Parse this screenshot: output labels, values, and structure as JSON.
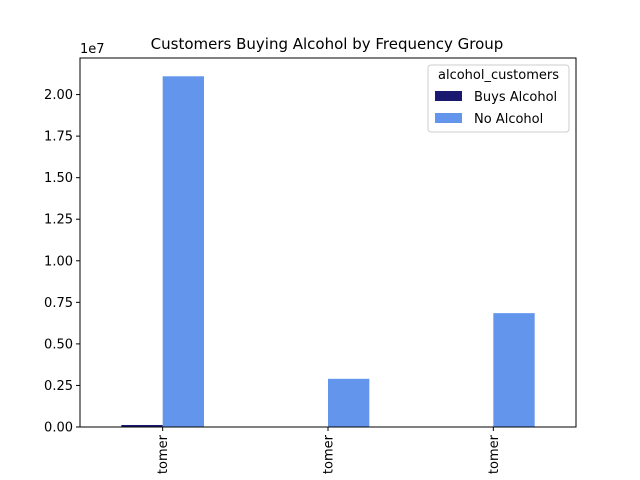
{
  "chart_data": {
    "type": "bar",
    "title": "Customers Buying Alcohol by Frequency Group",
    "xlabel": "",
    "ylabel": "",
    "categories": [
      "tomer",
      "tomer",
      "tomer"
    ],
    "y_offset_label": "1e7",
    "y_ticks": [
      0,
      0.25,
      0.5,
      0.75,
      1.0,
      1.25,
      1.5,
      1.75,
      2.0
    ],
    "y_tick_labels": [
      "0.00",
      "0.25",
      "0.50",
      "0.75",
      "1.00",
      "1.25",
      "1.50",
      "1.75",
      "2.00"
    ],
    "ylim": [
      0,
      2.22
    ],
    "legend": {
      "title": "alcohol_customers",
      "placement": "top-right"
    },
    "series": [
      {
        "name": "Buys Alcohol",
        "color": "#191970",
        "values": [
          0.012,
          0.0,
          0.0
        ]
      },
      {
        "name": "No Alcohol",
        "color": "#6495ED",
        "values": [
          2.11,
          0.29,
          0.685
        ]
      }
    ],
    "grid": false
  }
}
